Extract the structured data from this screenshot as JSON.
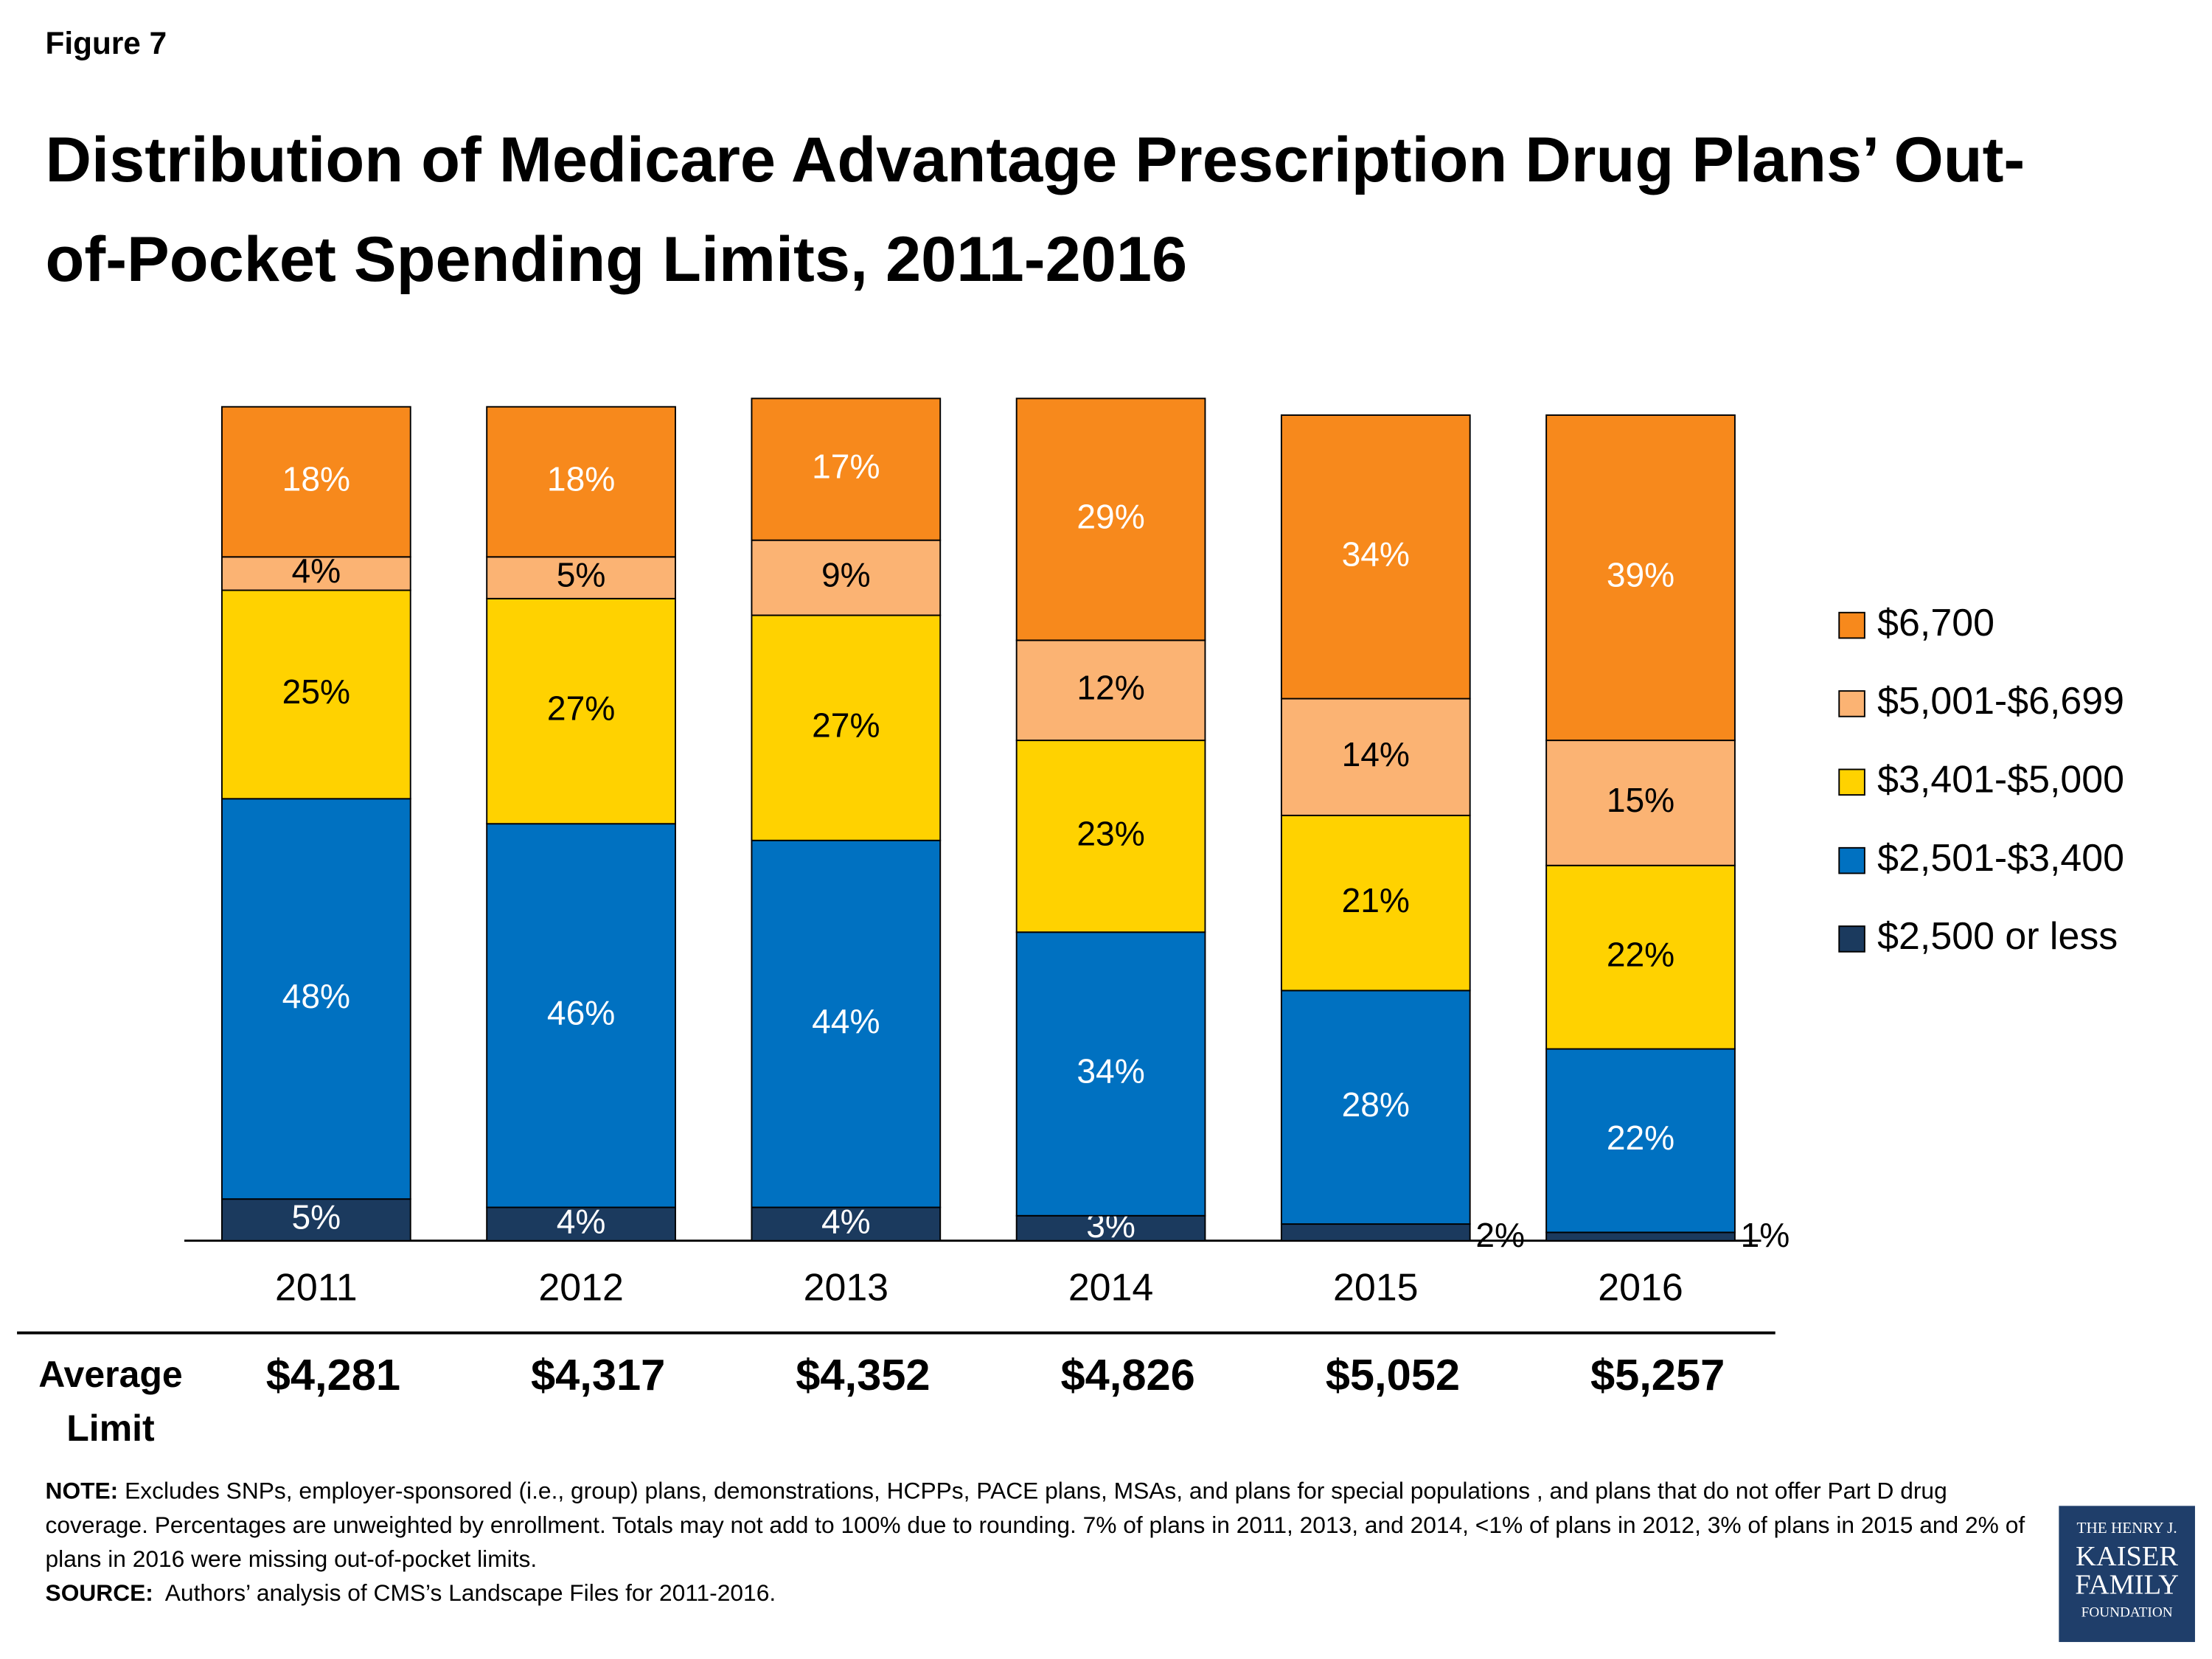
{
  "figure_label": "Figure 7",
  "chart_data": {
    "type": "stacked_bar",
    "title": "Distribution of Medicare Advantage Prescription Drug Plans’ Out-of-Pocket Spending Limits, 2011-2016",
    "categories": [
      "2011",
      "2012",
      "2013",
      "2014",
      "2015",
      "2016"
    ],
    "series": [
      {
        "name": "$2,500 or less",
        "color": "#1B3A5E",
        "values": [
          5,
          4,
          4,
          3,
          2,
          1
        ],
        "value_labels": [
          "5%",
          "4%",
          "4%",
          "3%",
          "2%",
          "1%"
        ]
      },
      {
        "name": "$2,501-$3,400",
        "color": "#0071C1",
        "values": [
          48,
          46,
          44,
          34,
          28,
          22
        ],
        "value_labels": [
          "48%",
          "46%",
          "44%",
          "34%",
          "28%",
          "22%"
        ]
      },
      {
        "name": "$3,401-$5,000",
        "color": "#FFD200",
        "values": [
          25,
          27,
          27,
          23,
          21,
          22
        ],
        "value_labels": [
          "25%",
          "27%",
          "27%",
          "23%",
          "21%",
          "22%"
        ]
      },
      {
        "name": "$5,001-$6,699",
        "color": "#FBB373",
        "values": [
          4,
          5,
          9,
          12,
          14,
          15
        ],
        "value_labels": [
          "4%",
          "5%",
          "9%",
          "12%",
          "14%",
          "15%"
        ]
      },
      {
        "name": "$6,700",
        "color": "#F7891C",
        "values": [
          18,
          18,
          17,
          29,
          34,
          39
        ],
        "value_labels": [
          "18%",
          "18%",
          "17%",
          "29%",
          "34%",
          "39%"
        ]
      }
    ],
    "average_limit": {
      "label": "Average Limit",
      "values": [
        "$4,281",
        "$4,317",
        "$4,352",
        "$4,826",
        "$5,052",
        "$5,257"
      ]
    }
  },
  "note_label": "NOTE:",
  "note": "Excludes SNPs, employer-sponsored (i.e., group) plans, demonstrations, HCPPs, PACE plans, MSAs, and plans for special populations , and plans that do not offer Part D drug coverage. Percentages are unweighted by enrollment. Totals may not add to 100% due to rounding.  7% of plans in 2011, 2013, and 2014, <1% of plans in 2012, 3% of plans in 2015 and 2% of plans in 2016 were missing out-of-pocket limits.",
  "source_label": "SOURCE:",
  "source": "Authors’ analysis of CMS’s Landscape Files for 2011-2016.",
  "logo": [
    "THE HENRY J.",
    "KAISER",
    "FAMILY",
    "FOUNDATION"
  ]
}
